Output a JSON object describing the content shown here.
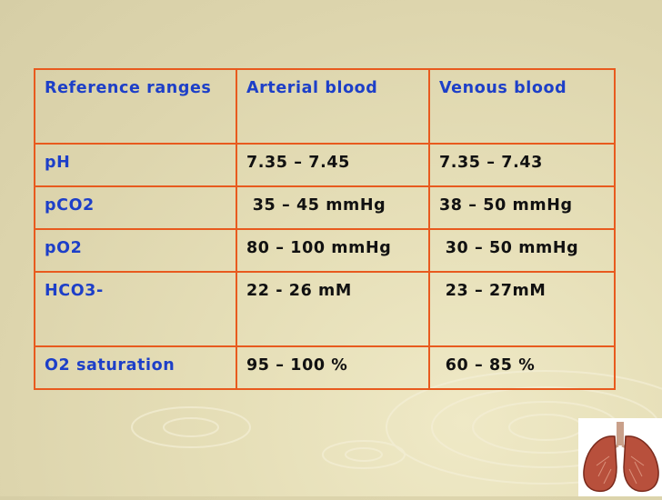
{
  "table": {
    "header": [
      "Reference ranges",
      "Arterial blood",
      "Venous blood"
    ],
    "rows": [
      {
        "label": "pH",
        "arterial": "7.35 – 7.45",
        "venous": "7.35 – 7.43"
      },
      {
        "label": "pCO2",
        "arterial": " 35 – 45 mmHg",
        "venous": "38 – 50 mmHg"
      },
      {
        "label": "pO2",
        "arterial": "80 – 100 mmHg",
        "venous": " 30 – 50 mmHg"
      },
      {
        "label": "HCO3-",
        "arterial": "22 - 26 mM",
        "venous": " 23 – 27mM"
      },
      {
        "label": "O2 saturation",
        "arterial": "95 – 100 %",
        "venous": " 60 – 85 %"
      }
    ]
  },
  "colors": {
    "border": "#e85a1e",
    "label_text": "#1d3fc8",
    "body_text": "#111111",
    "background": "#e3dcb4"
  },
  "decoration": {
    "icon": "lungs-icon"
  }
}
